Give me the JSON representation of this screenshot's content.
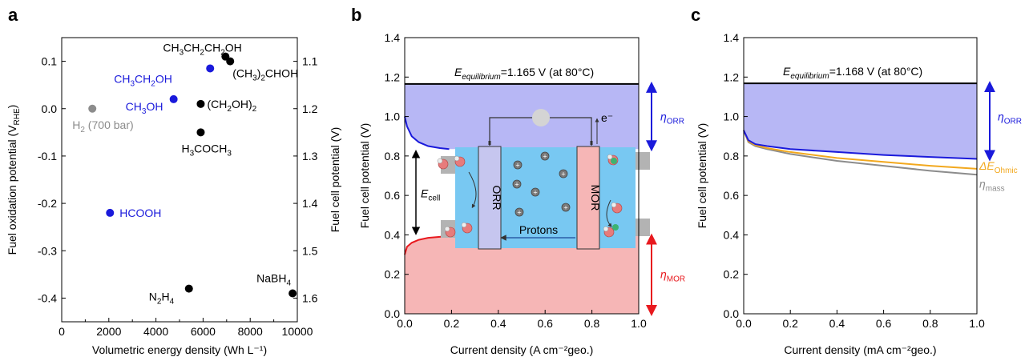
{
  "panel_letters": [
    "a",
    "b",
    "c"
  ],
  "colors": {
    "blue": "#1a1adb",
    "red": "#e8191e",
    "orange": "#f2a81e",
    "gray": "#8c8c8c",
    "blue_fill": "#b7b7f5",
    "red_fill": "#f6b6b6",
    "cell_bg": "#78c8f2"
  },
  "chart_data": [
    {
      "type": "scatter",
      "xlabel": "Volumetric energy density (Wh L⁻¹)",
      "ylabel": "Fuel oxidation potential (Vᴿᴴᴱ)",
      "y2label": "Fuel cell potential (V)",
      "xlim": [
        0,
        10000
      ],
      "ylim": [
        -0.45,
        0.15
      ],
      "xticks": [
        "0",
        "2000",
        "4000",
        "6000",
        "8000",
        "10000"
      ],
      "yticks": [
        "0.1",
        "0.0",
        "-0.1",
        "-0.2",
        "-0.3",
        "-0.4"
      ],
      "y2ticks": [
        "1.1",
        "1.2",
        "1.3",
        "1.4",
        "1.5",
        "1.6"
      ],
      "points": [
        {
          "label": "CH₃CH₂CH₂OH",
          "x": 6950,
          "y": 0.11,
          "color": "black"
        },
        {
          "label": "(CH₃)₂CHOH",
          "x": 7150,
          "y": 0.1,
          "color": "black"
        },
        {
          "label": "CH₃CH₂OH",
          "x": 6300,
          "y": 0.085,
          "color": "blue"
        },
        {
          "label": "CH₃OH",
          "x": 4750,
          "y": 0.02,
          "color": "blue"
        },
        {
          "label": "H₂ (700 bar)",
          "x": 1300,
          "y": 0.0,
          "color": "gray"
        },
        {
          "label": "(CH₂OH)₂",
          "x": 5900,
          "y": 0.01,
          "color": "black"
        },
        {
          "label": "H₃COCH₃",
          "x": 5900,
          "y": -0.05,
          "color": "black"
        },
        {
          "label": "HCOOH",
          "x": 2050,
          "y": -0.22,
          "color": "blue"
        },
        {
          "label": "N₂H₄",
          "x": 5400,
          "y": -0.38,
          "color": "black"
        },
        {
          "label": "NaBH₄",
          "x": 9800,
          "y": -0.39,
          "color": "black"
        }
      ]
    },
    {
      "type": "line",
      "xlabel": "Current density (A cm⁻²geo.)",
      "ylabel": "Fuel cell potential (V)",
      "xlim": [
        0,
        1.0
      ],
      "ylim": [
        0,
        1.4
      ],
      "xticks": [
        "0.0",
        "0.2",
        "0.4",
        "0.6",
        "0.8",
        "1.0"
      ],
      "yticks": [
        "0.0",
        "0.2",
        "0.4",
        "0.6",
        "0.8",
        "1.0",
        "1.2",
        "1.4"
      ],
      "equilibrium_label": "E",
      "equilibrium_sub": "equilibrium",
      "equilibrium_text": "=1.165 V (at 80°C)",
      "equilibrium_value": 1.165,
      "cathode_curve": [
        [
          0.0,
          1.0
        ],
        [
          0.01,
          0.95
        ],
        [
          0.03,
          0.9
        ],
        [
          0.06,
          0.87
        ],
        [
          0.1,
          0.85
        ],
        [
          0.15,
          0.84
        ],
        [
          0.19,
          0.835
        ]
      ],
      "anode_curve": [
        [
          0.0,
          0.3
        ],
        [
          0.01,
          0.34
        ],
        [
          0.03,
          0.36
        ],
        [
          0.06,
          0.375
        ],
        [
          0.1,
          0.385
        ],
        [
          0.15,
          0.39
        ],
        [
          0.19,
          0.395
        ]
      ],
      "annotations": {
        "eta_orr": "η",
        "eta_orr_sub": "ORR",
        "eta_mor": "η",
        "eta_mor_sub": "MOR",
        "ecell": "E",
        "ecell_sub": "cell"
      },
      "inset": {
        "orr": "ORR",
        "mor": "MOR",
        "protons": "Protons",
        "electron": "e⁻"
      }
    },
    {
      "type": "line",
      "xlabel": "Current density (mA cm⁻²geo.)",
      "ylabel": "Fuel cell potential (V)",
      "xlim": [
        0,
        1.0
      ],
      "ylim": [
        0,
        1.4
      ],
      "xticks": [
        "0.0",
        "0.2",
        "0.4",
        "0.6",
        "0.8",
        "1.0"
      ],
      "yticks": [
        "0.0",
        "0.2",
        "0.4",
        "0.6",
        "0.8",
        "1.0",
        "1.2",
        "1.4"
      ],
      "equilibrium_label": "E",
      "equilibrium_sub": "equilibrium",
      "equilibrium_text": "=1.168 V (at 80°C)",
      "equilibrium_value": 1.168,
      "series": [
        {
          "name": "blue",
          "color": "blue",
          "points": [
            [
              0.0,
              0.93
            ],
            [
              0.02,
              0.88
            ],
            [
              0.05,
              0.86
            ],
            [
              0.1,
              0.85
            ],
            [
              0.2,
              0.835
            ],
            [
              0.4,
              0.82
            ],
            [
              0.6,
              0.805
            ],
            [
              0.8,
              0.795
            ],
            [
              1.0,
              0.785
            ]
          ]
        },
        {
          "name": "orange",
          "color": "orange",
          "points": [
            [
              0.0,
              0.93
            ],
            [
              0.02,
              0.875
            ],
            [
              0.05,
              0.855
            ],
            [
              0.1,
              0.84
            ],
            [
              0.2,
              0.82
            ],
            [
              0.4,
              0.79
            ],
            [
              0.6,
              0.77
            ],
            [
              0.8,
              0.75
            ],
            [
              1.0,
              0.735
            ]
          ]
        },
        {
          "name": "gray",
          "color": "gray",
          "points": [
            [
              0.0,
              0.93
            ],
            [
              0.02,
              0.87
            ],
            [
              0.05,
              0.85
            ],
            [
              0.1,
              0.835
            ],
            [
              0.2,
              0.81
            ],
            [
              0.4,
              0.775
            ],
            [
              0.6,
              0.75
            ],
            [
              0.8,
              0.725
            ],
            [
              1.0,
              0.705
            ]
          ]
        }
      ],
      "annotations": {
        "eta_orr": "η",
        "eta_orr_sub": "ORR",
        "delta_e": "ΔE",
        "delta_e_sub": "Ohmic",
        "eta_mass": "η",
        "eta_mass_sub": "mass"
      }
    }
  ]
}
